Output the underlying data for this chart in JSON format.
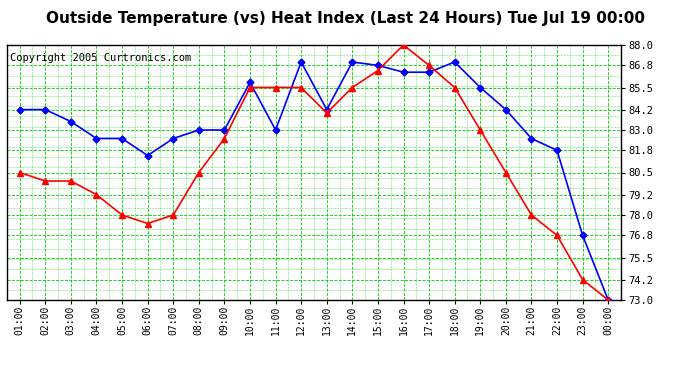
{
  "title": "Outside Temperature (vs) Heat Index (Last 24 Hours) Tue Jul 19 00:00",
  "copyright": "Copyright 2005 Curtronics.com",
  "x_labels": [
    "01:00",
    "02:00",
    "03:00",
    "04:00",
    "05:00",
    "06:00",
    "07:00",
    "08:00",
    "09:00",
    "10:00",
    "11:00",
    "12:00",
    "13:00",
    "14:00",
    "15:00",
    "16:00",
    "17:00",
    "18:00",
    "19:00",
    "20:00",
    "21:00",
    "22:00",
    "23:00",
    "00:00"
  ],
  "blue_data": [
    84.2,
    84.2,
    83.5,
    82.5,
    82.5,
    81.5,
    82.5,
    83.0,
    83.0,
    85.8,
    83.0,
    87.0,
    84.2,
    87.0,
    86.8,
    86.4,
    86.4,
    87.0,
    85.5,
    84.2,
    82.5,
    81.8,
    76.8,
    73.0
  ],
  "red_data": [
    80.5,
    80.0,
    80.0,
    79.2,
    78.0,
    77.5,
    78.0,
    80.5,
    82.5,
    85.5,
    85.5,
    85.5,
    84.0,
    85.5,
    86.5,
    88.0,
    86.8,
    85.5,
    83.0,
    80.5,
    78.0,
    76.8,
    74.2,
    73.0
  ],
  "ylim_min": 73.0,
  "ylim_max": 88.0,
  "yticks": [
    73.0,
    74.2,
    75.5,
    76.8,
    78.0,
    79.2,
    80.5,
    81.8,
    83.0,
    84.2,
    85.5,
    86.8,
    88.0
  ],
  "bg_color": "#ffffff",
  "plot_bg_color": "#ffffff",
  "grid_color": "#00cc00",
  "blue_color": "#0000ff",
  "red_color": "#ff0000",
  "title_fontsize": 11,
  "copyright_fontsize": 7.5
}
